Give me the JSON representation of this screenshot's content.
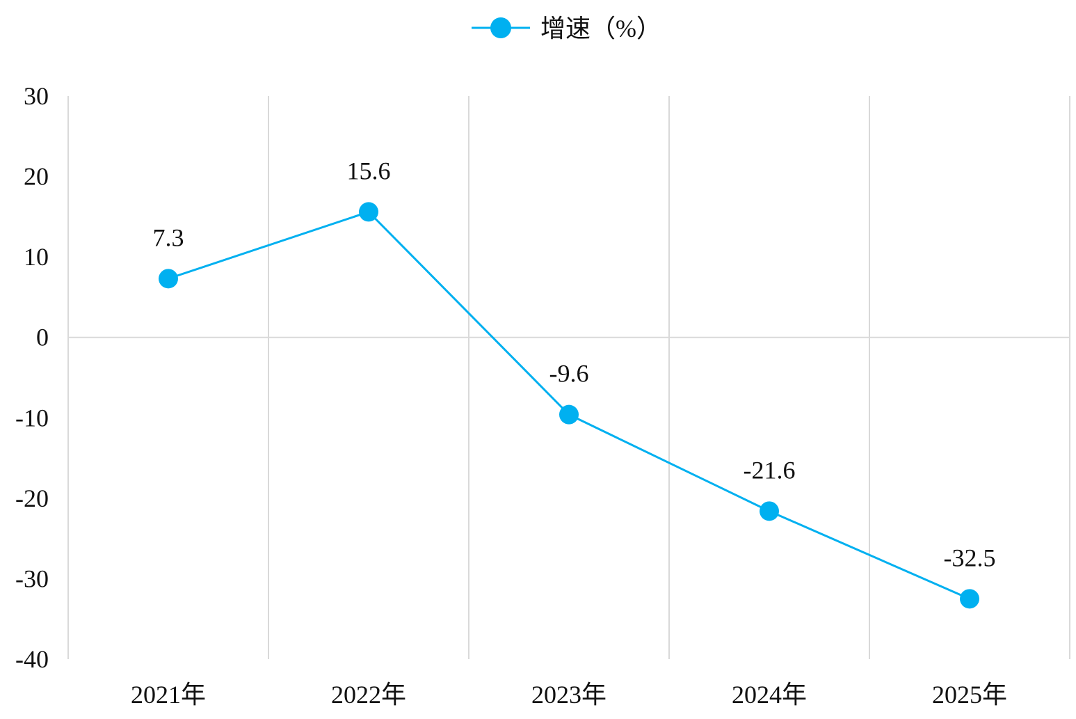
{
  "colors": {
    "series": "#00B0F0",
    "grid": "#D9D9D9",
    "text": "#111111"
  },
  "chart_data": {
    "type": "line",
    "categories": [
      "2021年",
      "2022年",
      "2023年",
      "2024年",
      "2025年"
    ],
    "series": [
      {
        "name": "增速（%）",
        "values": [
          7.3,
          15.6,
          -9.6,
          -21.6,
          -32.5
        ],
        "data_labels": [
          "7.3",
          "15.6",
          "-9.6",
          "-21.6",
          "-32.5"
        ]
      }
    ],
    "ylim": [
      -40,
      30
    ],
    "yticks": [
      30,
      20,
      10,
      0,
      -10,
      -20,
      -30,
      -40
    ],
    "ytick_labels": [
      "30",
      "20",
      "10",
      "0",
      "-10",
      "-20",
      "-30",
      "-40"
    ],
    "legend_position": "top-center",
    "grid": {
      "vertical": true,
      "zero_line": true
    },
    "title": "",
    "xlabel": "",
    "ylabel": ""
  }
}
